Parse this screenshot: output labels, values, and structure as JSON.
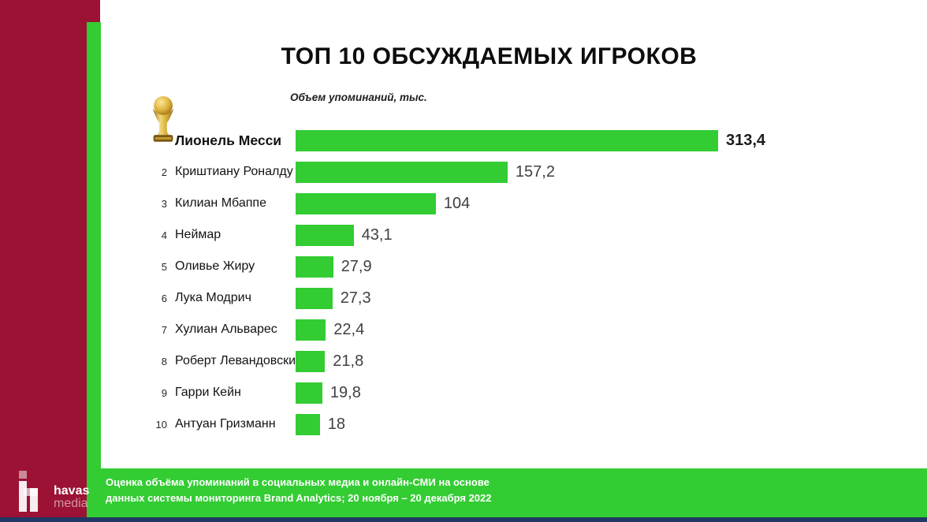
{
  "slide": {
    "title": "ТОП 10 ОБСУЖДАЕМЫХ ИГРОКОВ",
    "axis_note": "Объем упоминаний, тыс.",
    "footer": {
      "line1": "Оценка объёма упоминаний в социальных медиа и онлайн-СМИ на основе",
      "line2": "данных системы мониторинга Brand Analytics;  20 ноября – 20 декабря 2022"
    },
    "logo": {
      "line1": "havas",
      "line2": "media"
    },
    "icons": {
      "rank1_marker": "world-cup-trophy-icon",
      "brand_mark": "havas-h-blocks-icon"
    }
  },
  "colors": {
    "sidebar_red": "#9B1234",
    "accent_green": "#33CC33",
    "bottom_strip_navy": "#203864",
    "value_text": "#404040",
    "trophy_gold": "#D4A433"
  },
  "chart_data": {
    "type": "bar",
    "orientation": "horizontal",
    "title": "ТОП 10 ОБСУЖДАЕМЫХ ИГРОКОВ",
    "value_axis_label": "Объем упоминаний, тыс.",
    "xlim": [
      0,
      330
    ],
    "grid": false,
    "legend": false,
    "categories": [
      "Лионель Месси",
      "Криштиану Роналду",
      "Килиан Мбаппе",
      "Неймар",
      "Оливье Жиру",
      "Лука Модрич",
      "Хулиан Альварес",
      "Роберт Левандовски",
      "Гарри Кейн",
      "Антуан Гризманн"
    ],
    "values": [
      313.4,
      157.2,
      104,
      43.1,
      27.9,
      27.3,
      22.4,
      21.8,
      19.8,
      18
    ],
    "rows": [
      {
        "rank": "",
        "name": "Лионель Месси",
        "value": 313.4,
        "value_label": "313,4",
        "highlight": true,
        "marker": "world-cup-trophy-icon"
      },
      {
        "rank": "2",
        "name": "Криштиану Роналду",
        "value": 157.2,
        "value_label": "157,2",
        "highlight": false
      },
      {
        "rank": "3",
        "name": "Килиан Мбаппе",
        "value": 104,
        "value_label": "104",
        "highlight": false
      },
      {
        "rank": "4",
        "name": "Неймар",
        "value": 43.1,
        "value_label": "43,1",
        "highlight": false
      },
      {
        "rank": "5",
        "name": "Оливье Жиру",
        "value": 27.9,
        "value_label": "27,9",
        "highlight": false
      },
      {
        "rank": "6",
        "name": "Лука Модрич",
        "value": 27.3,
        "value_label": "27,3",
        "highlight": false
      },
      {
        "rank": "7",
        "name": "Хулиан Альварес",
        "value": 22.4,
        "value_label": "22,4",
        "highlight": false
      },
      {
        "rank": "8",
        "name": "Роберт Левандовски",
        "value": 21.8,
        "value_label": "21,8",
        "highlight": false
      },
      {
        "rank": "9",
        "name": "Гарри Кейн",
        "value": 19.8,
        "value_label": "19,8",
        "highlight": false
      },
      {
        "rank": "10",
        "name": "Антуан Гризманн",
        "value": 18,
        "value_label": "18",
        "highlight": false
      }
    ]
  }
}
